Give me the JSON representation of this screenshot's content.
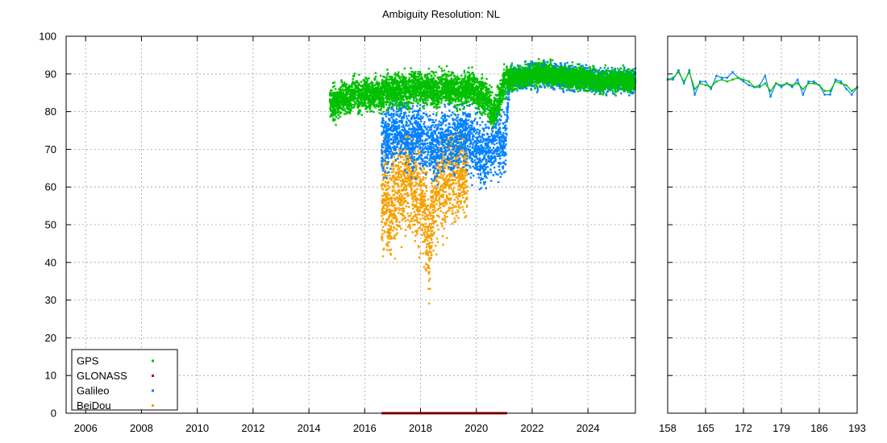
{
  "chart_data": [
    {
      "type": "scatter",
      "title": "Ambiguity Resolution: NL",
      "xlabel": "",
      "ylabel": "",
      "xlim": [
        2005.3,
        2025.7
      ],
      "ylim": [
        0,
        100
      ],
      "x_ticks": [
        "2006",
        "2008",
        "2010",
        "2012",
        "2014",
        "2016",
        "2018",
        "2020",
        "2022",
        "2024"
      ],
      "y_ticks": [
        "0",
        "10",
        "20",
        "30",
        "40",
        "50",
        "60",
        "70",
        "80",
        "90",
        "100"
      ],
      "grid": true,
      "legend_position": "bottom-left",
      "series": [
        {
          "name": "GPS",
          "color": "#00c000",
          "x_range": [
            2014.75,
            2025.7
          ],
          "points": [
            [
              2014.8,
              83
            ],
            [
              2015.0,
              82
            ],
            [
              2015.2,
              84
            ],
            [
              2015.4,
              83
            ],
            [
              2015.6,
              85
            ],
            [
              2015.8,
              84
            ],
            [
              2016.0,
              85
            ],
            [
              2016.2,
              84
            ],
            [
              2016.4,
              85
            ],
            [
              2016.6,
              84
            ],
            [
              2016.8,
              86
            ],
            [
              2017.0,
              85
            ],
            [
              2017.2,
              86
            ],
            [
              2017.4,
              86
            ],
            [
              2017.6,
              85
            ],
            [
              2017.8,
              87
            ],
            [
              2018.0,
              86
            ],
            [
              2018.2,
              86
            ],
            [
              2018.4,
              86
            ],
            [
              2018.6,
              85
            ],
            [
              2018.8,
              87
            ],
            [
              2019.0,
              86
            ],
            [
              2019.2,
              86
            ],
            [
              2019.4,
              85
            ],
            [
              2019.6,
              86
            ],
            [
              2019.8,
              87
            ],
            [
              2020.0,
              85
            ],
            [
              2020.2,
              84
            ],
            [
              2020.4,
              83
            ],
            [
              2020.6,
              80
            ],
            [
              2020.8,
              82
            ],
            [
              2021.0,
              88
            ],
            [
              2021.2,
              89
            ],
            [
              2021.5,
              89
            ],
            [
              2022.0,
              90
            ],
            [
              2022.5,
              90
            ],
            [
              2023.0,
              89.5
            ],
            [
              2023.5,
              89
            ],
            [
              2024.0,
              88.5
            ],
            [
              2024.5,
              88
            ],
            [
              2025.0,
              88.5
            ],
            [
              2025.5,
              88
            ]
          ]
        },
        {
          "name": "GLONASS",
          "color": "#c00000",
          "x_range": [
            2016.6,
            2021.1
          ],
          "points": [
            [
              2016.6,
              0
            ],
            [
              2017.5,
              0
            ],
            [
              2018.5,
              0
            ],
            [
              2019.5,
              0
            ],
            [
              2020.5,
              0
            ],
            [
              2021.1,
              0
            ]
          ]
        },
        {
          "name": "Galileo",
          "color": "#0080ff",
          "x_range": [
            2016.6,
            2025.7
          ],
          "points": [
            [
              2016.7,
              72
            ],
            [
              2016.9,
              73
            ],
            [
              2017.1,
              75
            ],
            [
              2017.3,
              76
            ],
            [
              2017.5,
              74
            ],
            [
              2017.7,
              72
            ],
            [
              2017.9,
              74
            ],
            [
              2018.1,
              73
            ],
            [
              2018.3,
              72
            ],
            [
              2018.5,
              70
            ],
            [
              2018.7,
              72
            ],
            [
              2018.9,
              74
            ],
            [
              2019.1,
              71
            ],
            [
              2019.3,
              73
            ],
            [
              2019.5,
              75
            ],
            [
              2019.7,
              74
            ],
            [
              2019.9,
              72
            ],
            [
              2020.1,
              70
            ],
            [
              2020.3,
              68
            ],
            [
              2020.5,
              71
            ],
            [
              2020.7,
              73
            ],
            [
              2020.9,
              72
            ],
            [
              2021.0,
              70
            ],
            [
              2021.2,
              89
            ],
            [
              2021.5,
              89
            ],
            [
              2022.0,
              90
            ],
            [
              2022.5,
              90
            ],
            [
              2023.0,
              89.5
            ],
            [
              2023.5,
              89
            ],
            [
              2024.0,
              88.5
            ],
            [
              2024.5,
              88
            ],
            [
              2025.0,
              88.5
            ],
            [
              2025.5,
              88
            ]
          ]
        },
        {
          "name": "BeiDou",
          "color": "#f5a000",
          "x_range": [
            2016.6,
            2019.7
          ],
          "points": [
            [
              2016.7,
              57
            ],
            [
              2016.8,
              55
            ],
            [
              2016.9,
              52
            ],
            [
              2017.0,
              58
            ],
            [
              2017.2,
              60
            ],
            [
              2017.4,
              62
            ],
            [
              2017.6,
              63
            ],
            [
              2017.8,
              59
            ],
            [
              2018.0,
              56
            ],
            [
              2018.2,
              53
            ],
            [
              2018.3,
              45
            ],
            [
              2018.5,
              58
            ],
            [
              2018.7,
              60
            ],
            [
              2018.9,
              62
            ],
            [
              2019.1,
              65
            ],
            [
              2019.3,
              63
            ],
            [
              2019.5,
              66
            ],
            [
              2019.6,
              64
            ]
          ]
        }
      ]
    },
    {
      "type": "line",
      "title": "",
      "xlabel": "",
      "ylabel": "",
      "xlim": [
        158,
        193
      ],
      "ylim": [
        0,
        100
      ],
      "x_ticks": [
        "158",
        "165",
        "172",
        "179",
        "186",
        "193"
      ],
      "grid": true,
      "series": [
        {
          "name": "GPS",
          "color": "#00c000",
          "x": [
            158,
            159,
            160,
            161,
            162,
            163,
            164,
            165,
            166,
            167,
            168,
            169,
            170,
            171,
            172,
            173,
            174,
            175,
            176,
            177,
            178,
            179,
            180,
            181,
            182,
            183,
            184,
            185,
            186,
            187,
            188,
            189,
            190,
            191,
            192,
            193
          ],
          "values": [
            88.5,
            89,
            90.5,
            88,
            90.5,
            86,
            87.5,
            87,
            86.5,
            88,
            88.5,
            88,
            88.5,
            89,
            88.5,
            88,
            86.5,
            86.5,
            87.5,
            85.5,
            87.5,
            87,
            87.5,
            87,
            87.5,
            86,
            87.5,
            87.5,
            87,
            85.5,
            85.5,
            88,
            87.5,
            87,
            85.5,
            86.5
          ]
        },
        {
          "name": "Galileo",
          "color": "#0080ff",
          "x": [
            158,
            159,
            160,
            161,
            162,
            163,
            164,
            165,
            166,
            167,
            168,
            169,
            170,
            171,
            172,
            173,
            174,
            175,
            176,
            177,
            178,
            179,
            180,
            181,
            182,
            183,
            184,
            185,
            186,
            187,
            188,
            189,
            190,
            191,
            192,
            193
          ],
          "values": [
            88.5,
            88.5,
            91,
            87.5,
            91,
            84.5,
            88,
            88,
            86,
            89.5,
            89,
            89,
            90.5,
            89,
            88,
            87,
            86.5,
            87,
            89.5,
            84,
            87.5,
            86.5,
            87.5,
            86.5,
            88.5,
            84.5,
            88,
            88,
            87,
            84.5,
            84.5,
            88.5,
            88,
            86,
            84.5,
            86.5
          ]
        }
      ]
    }
  ]
}
